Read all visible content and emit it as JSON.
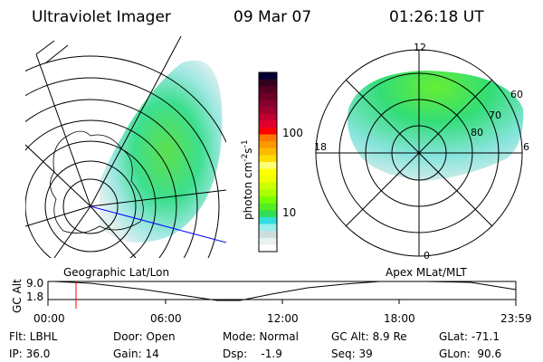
{
  "header": {
    "instrument": "Ultraviolet Imager",
    "date": "09 Mar 07",
    "time": "01:26:18 UT"
  },
  "colorbar": {
    "label": "photon cm",
    "label_exp1": "-2",
    "label_s": "s",
    "label_exp2": "-1",
    "ticks": [
      "100",
      "10"
    ],
    "colors": [
      "#000033",
      "#33001f",
      "#550022",
      "#6e0028",
      "#880030",
      "#a00030",
      "#c00030",
      "#e00030",
      "#ff0000",
      "#ff7700",
      "#ff9900",
      "#ffbb00",
      "#ffdd00",
      "#ffff77",
      "#ffff00",
      "#eeff00",
      "#ccff00",
      "#aaff00",
      "#77ff00",
      "#55ee22",
      "#33dd55",
      "#33dddd",
      "#99eeee",
      "#ccdddd",
      "#e8f2ee",
      "#ffffff"
    ]
  },
  "left_map": {
    "label": "Geographic Lat/Lon"
  },
  "right_map": {
    "label": "Apex MLat/MLT",
    "mlt_labels": [
      "12",
      "18",
      "6",
      "0"
    ],
    "lat_labels": [
      "60",
      "70",
      "80"
    ]
  },
  "alt_plot": {
    "ylabel": "GC Alt",
    "yticks": [
      "9.0",
      "1.8"
    ],
    "xticks": [
      "00:00",
      "06:00",
      "12:00",
      "18:00",
      "23:59"
    ],
    "marker_time_hours": 1.44,
    "marker_color": "#ff0000"
  },
  "info": {
    "flt": "Flt: LBHL",
    "ip": "IP: 36.0",
    "door": "Door: Open",
    "gain": "Gain: 14",
    "mode": "Mode: Normal",
    "dsp": "Dsp:    -1.9",
    "gcalt": "GC Alt: 8.9 Re",
    "seq": "Seq: 39",
    "glat": "GLat: -71.1",
    "glon": "GLon:  90.6"
  }
}
